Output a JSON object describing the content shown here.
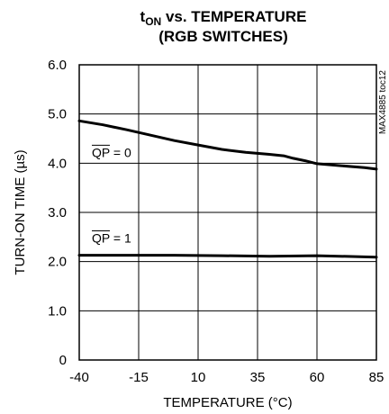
{
  "chart_data": {
    "type": "line",
    "title": {
      "line1_main": "t",
      "line1_sub": "ON",
      "line1_rest": " vs. TEMPERATURE",
      "line2": "(RGB SWITCHES)"
    },
    "xlabel": "TEMPERATURE (°C)",
    "ylabel": "TURN-ON TIME (µs)",
    "xlim": [
      -40,
      85
    ],
    "ylim": [
      0,
      6
    ],
    "xticks": [
      "-40",
      "-15",
      "10",
      "35",
      "60",
      "85"
    ],
    "yticks": [
      "0",
      "1.0",
      "2.0",
      "3.0",
      "4.0",
      "5.0",
      "6.0"
    ],
    "grid": true,
    "series": [
      {
        "name": "QP = 0",
        "x": [
          -40,
          -30,
          -20,
          -10,
          0,
          10,
          20,
          30,
          40,
          46,
          50,
          55,
          60,
          70,
          80,
          85
        ],
        "y": [
          4.86,
          4.78,
          4.68,
          4.57,
          4.46,
          4.37,
          4.28,
          4.22,
          4.18,
          4.15,
          4.1,
          4.05,
          3.99,
          3.95,
          3.91,
          3.88
        ]
      },
      {
        "name": "QP = 1",
        "x": [
          -40,
          -20,
          0,
          20,
          40,
          60,
          85
        ],
        "y": [
          2.13,
          2.13,
          2.13,
          2.12,
          2.11,
          2.12,
          2.09
        ]
      }
    ],
    "annotations": [
      {
        "series": 0,
        "label_over": "QP",
        "label_rest": " = 0"
      },
      {
        "series": 1,
        "label_over": "QP",
        "label_rest": " = 1"
      }
    ],
    "side_label": "MAX4885 toc12"
  }
}
